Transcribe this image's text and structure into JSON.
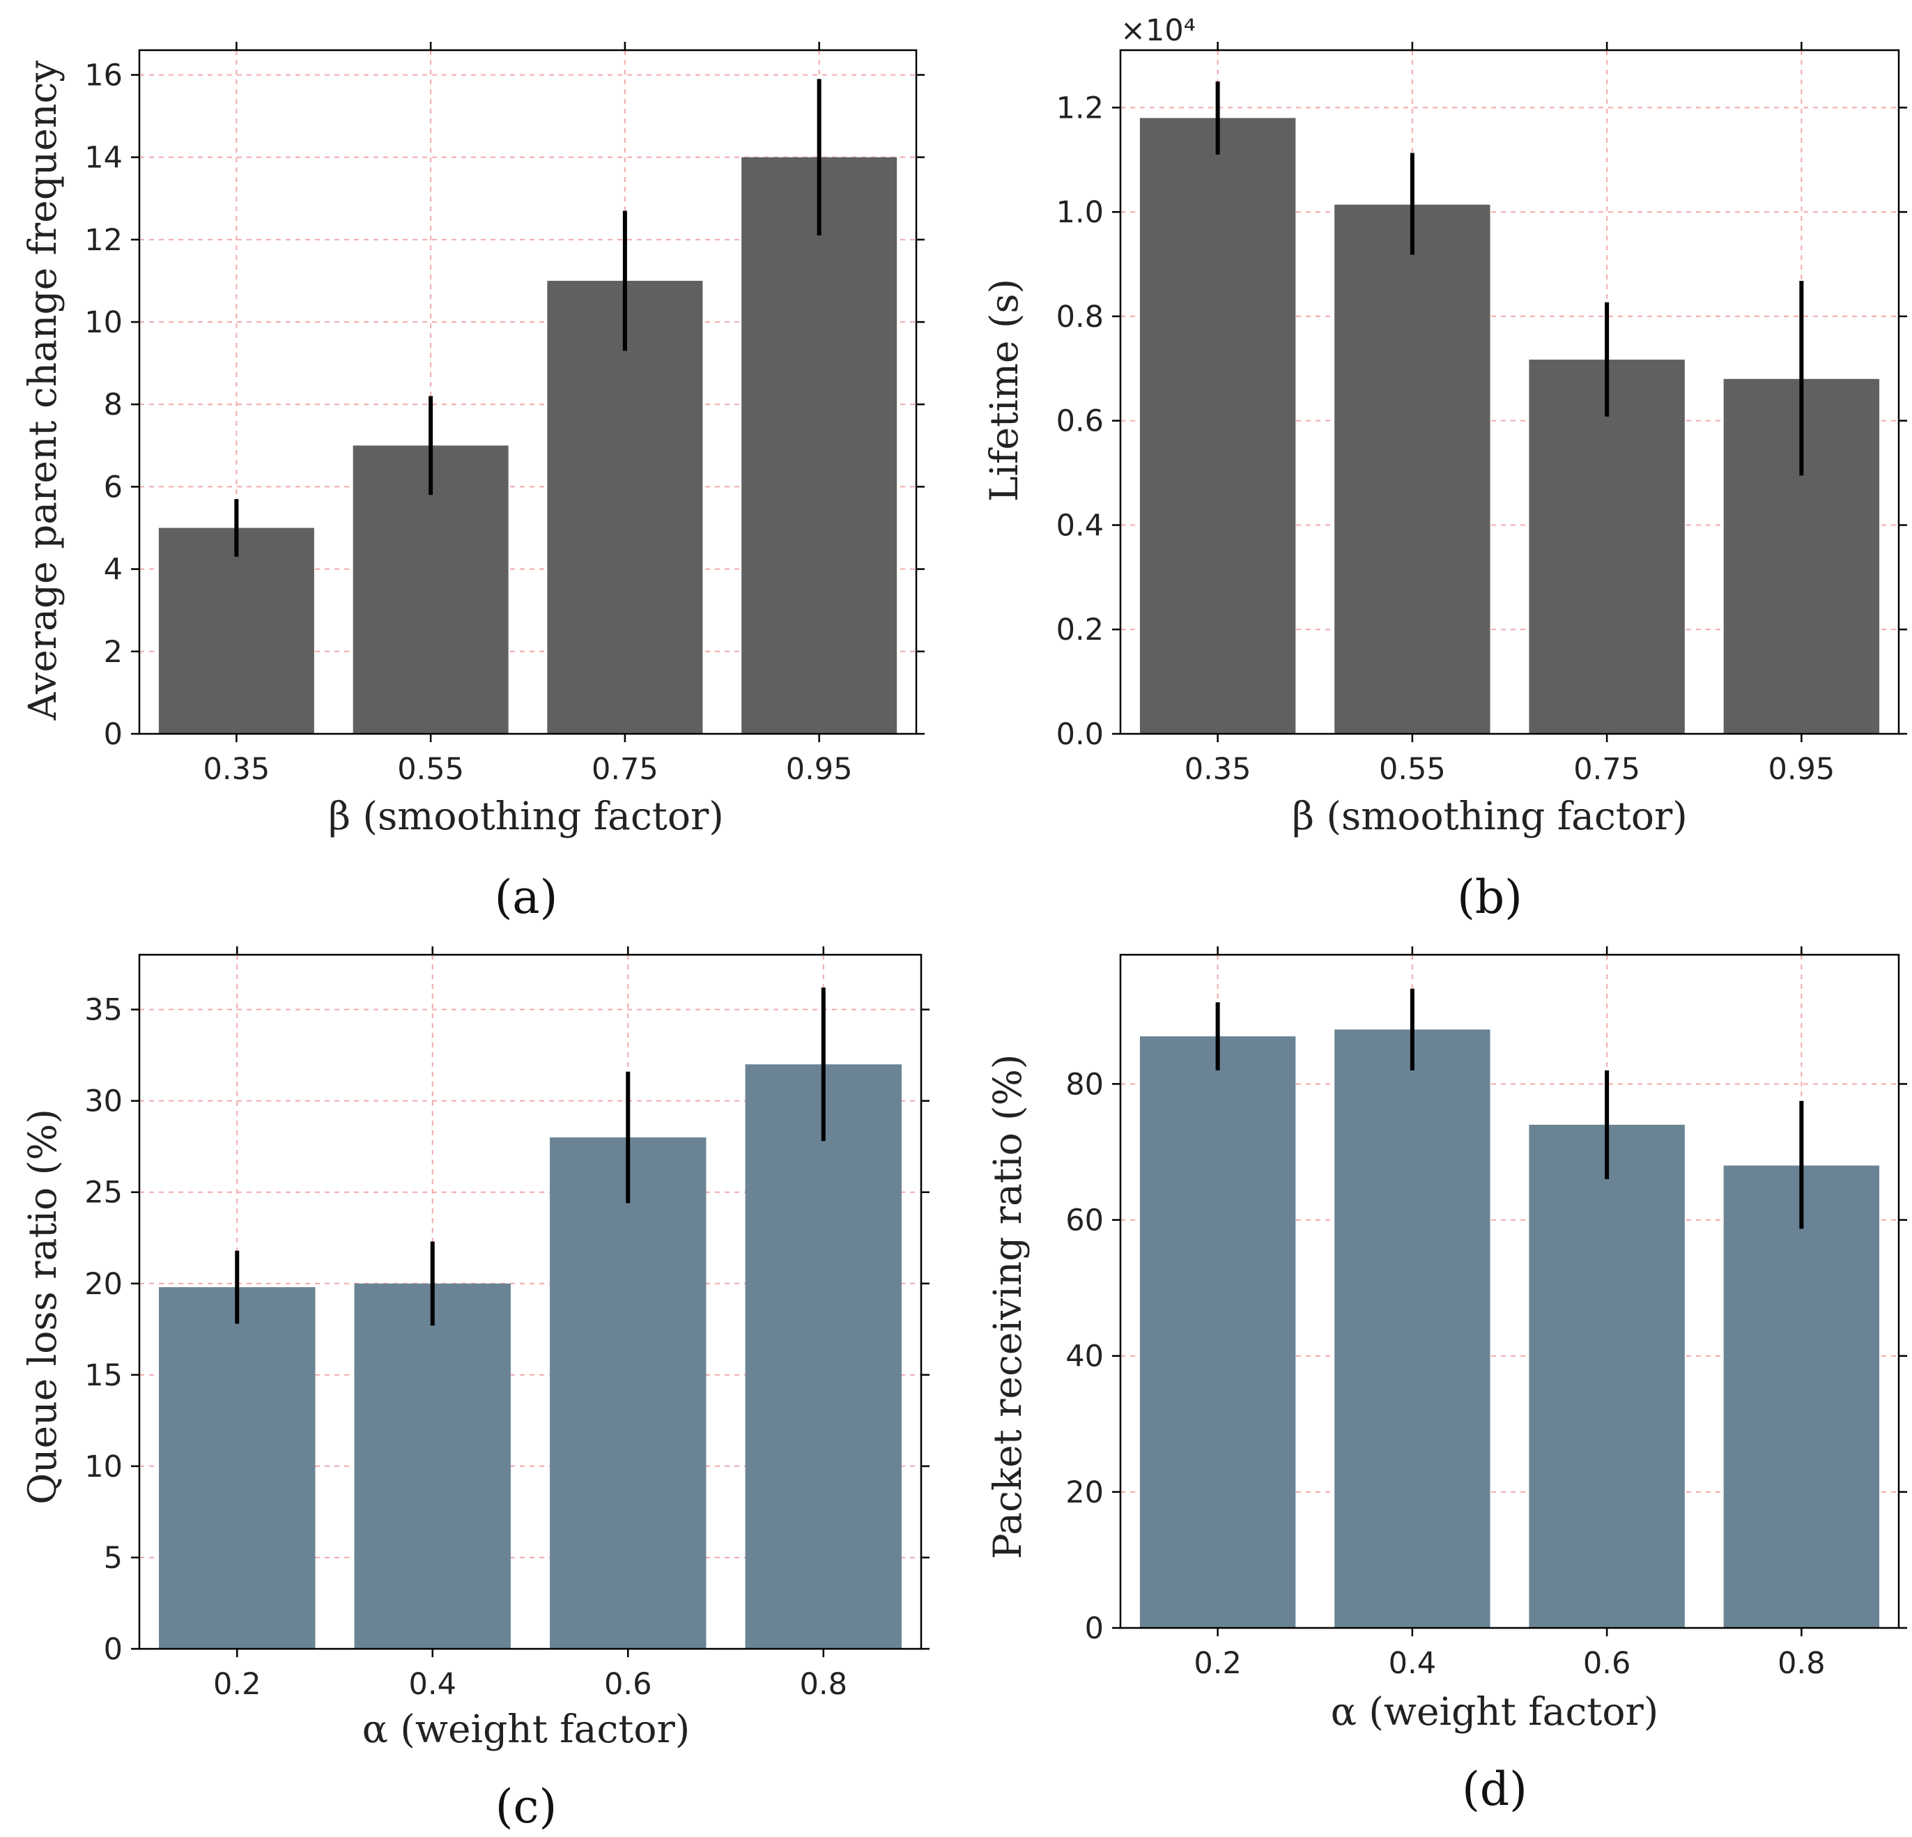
{
  "chart_data": [
    {
      "type": "bar",
      "panel_label": "(a)",
      "categories": [
        "0.35",
        "0.55",
        "0.75",
        "0.95"
      ],
      "values": [
        5,
        7,
        11,
        14
      ],
      "error_low": [
        4.3,
        5.8,
        9.3,
        12.1
      ],
      "error_high": [
        5.7,
        8.2,
        12.7,
        15.9
      ],
      "xlabel": "β (smoothing factor)",
      "ylabel": "Average parent change frequency",
      "ylim": [
        0,
        16.6
      ],
      "yticks": [
        0,
        2,
        4,
        6,
        8,
        10,
        12,
        14,
        16
      ],
      "ytick_labels": [
        "0",
        "2",
        "4",
        "6",
        "8",
        "10",
        "12",
        "14",
        "16"
      ],
      "bar_color": "#606060",
      "error_color": "#000000",
      "grid": true,
      "grid_color": "#f4a9a9",
      "offset_text": ""
    },
    {
      "type": "bar",
      "panel_label": "(b)",
      "categories": [
        "0.35",
        "0.55",
        "0.75",
        "0.95"
      ],
      "values": [
        1.18,
        1.014,
        0.717,
        0.68
      ],
      "error_low": [
        1.11,
        0.918,
        0.608,
        0.495
      ],
      "error_high": [
        1.25,
        1.113,
        0.827,
        0.868
      ],
      "xlabel": "β (smoothing factor)",
      "ylabel": "Lifetime (s)",
      "ylim": [
        0,
        1.31
      ],
      "yticks": [
        0,
        0.2,
        0.4,
        0.6,
        0.8,
        1.0,
        1.2
      ],
      "ytick_labels": [
        "0.0",
        "0.2",
        "0.4",
        "0.6",
        "0.8",
        "1.0",
        "1.2"
      ],
      "bar_color": "#606060",
      "error_color": "#000000",
      "grid": true,
      "grid_color": "#f4a9a9",
      "offset_text": "×10⁴"
    },
    {
      "type": "bar",
      "panel_label": "(c)",
      "categories": [
        "0.2",
        "0.4",
        "0.6",
        "0.8"
      ],
      "values": [
        19.8,
        20,
        28,
        32
      ],
      "error_low": [
        17.8,
        17.7,
        24.4,
        27.8
      ],
      "error_high": [
        21.8,
        22.3,
        31.6,
        36.2
      ],
      "xlabel": "α (weight factor)",
      "ylabel": "Queue loss ratio (%)",
      "ylim": [
        0,
        38
      ],
      "yticks": [
        0,
        5,
        10,
        15,
        20,
        25,
        30,
        35
      ],
      "ytick_labels": [
        "0",
        "5",
        "10",
        "15",
        "20",
        "25",
        "30",
        "35"
      ],
      "bar_color": "#6a8495",
      "error_color": "#000000",
      "grid": true,
      "grid_color": "#f4a9a9",
      "offset_text": ""
    },
    {
      "type": "bar",
      "panel_label": "(d)",
      "categories": [
        "0.2",
        "0.4",
        "0.6",
        "0.8"
      ],
      "values": [
        87,
        88,
        74,
        68
      ],
      "error_low": [
        82,
        82,
        66,
        58.7
      ],
      "error_high": [
        92,
        94,
        82,
        77.5
      ],
      "xlabel": "α (weight factor)",
      "ylabel": "Packet receiving ratio (%)",
      "ylim": [
        0,
        99
      ],
      "yticks": [
        0,
        20,
        40,
        60,
        80
      ],
      "ytick_labels": [
        "0",
        "20",
        "40",
        "60",
        "80"
      ],
      "bar_color": "#6a8495",
      "error_color": "#000000",
      "grid": true,
      "grid_color": "#f4a9a9",
      "offset_text": ""
    }
  ]
}
